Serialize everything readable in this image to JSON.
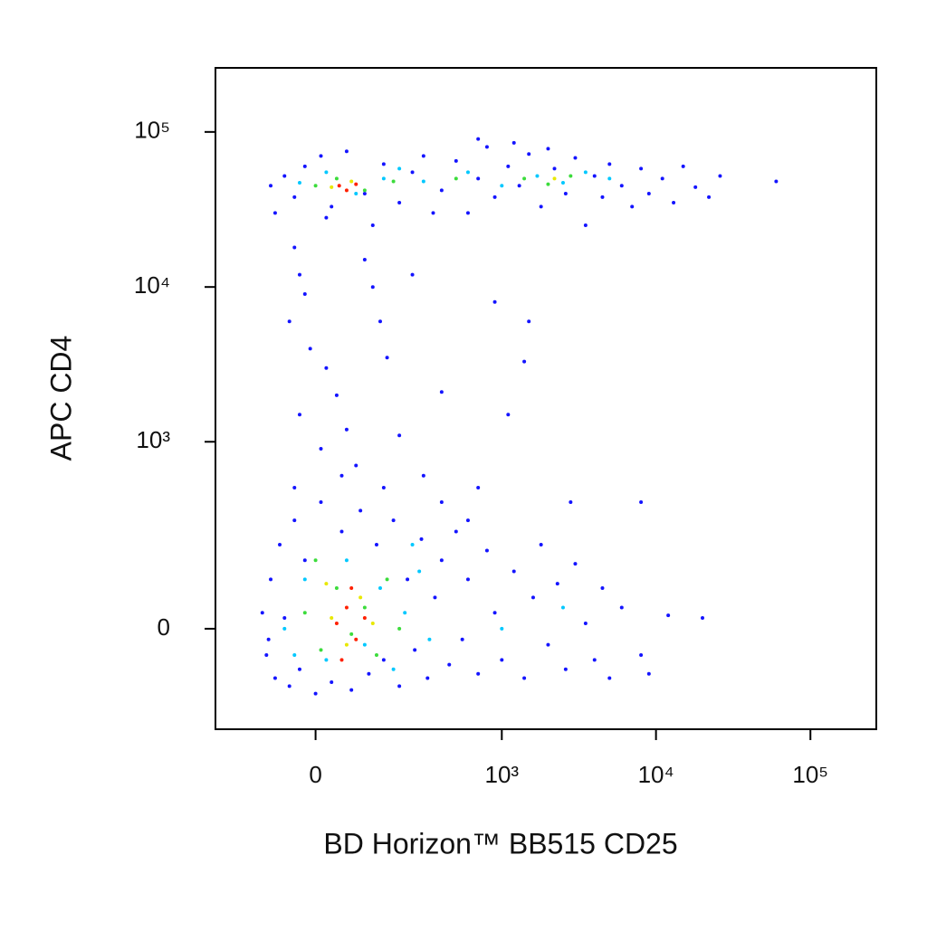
{
  "chart_data": {
    "type": "scatter",
    "xlabel": "BD Horizon™ BB515 CD25",
    "ylabel": "APC CD4",
    "xscale": "biexponential",
    "yscale": "biexponential",
    "xlim": [
      -264,
      267000
    ],
    "ylim": [
      -264,
      259000
    ],
    "xticks": [
      0,
      {
        "value": 1000,
        "label": "10³"
      },
      {
        "value": 10000,
        "label": "10⁴"
      },
      {
        "value": 100000,
        "label": "10⁵"
      }
    ],
    "yticks": [
      0,
      {
        "value": 1000,
        "label": "10³"
      },
      {
        "value": 10000,
        "label": "10⁴"
      },
      {
        "value": 100000,
        "label": "10⁵"
      }
    ],
    "series": [
      {
        "color": "#1414ff",
        "x": [
          -90,
          -60,
          -40,
          -20,
          10,
          30,
          60,
          100,
          150,
          200,
          250,
          300,
          400,
          500,
          600,
          700,
          800,
          900,
          1100,
          1300,
          1500,
          1800,
          2200,
          2600,
          3000,
          3500,
          4000,
          4500,
          5000,
          6000,
          7000,
          8000,
          9000,
          11000,
          13000,
          15000,
          18000,
          22000,
          26000,
          60000,
          -80,
          20,
          120,
          350,
          2000,
          1200,
          700,
          -40,
          -30,
          -20,
          -50,
          -10,
          20,
          40,
          -30,
          60,
          10,
          80,
          100,
          120,
          140,
          160,
          250,
          900,
          1500,
          1400,
          1100,
          400,
          200,
          2800,
          8000,
          600,
          -100,
          -90,
          -80,
          -70,
          -60,
          -50,
          -40,
          -30,
          -20,
          0,
          10,
          30,
          50,
          70,
          90,
          110,
          130,
          150,
          180,
          200,
          230,
          260,
          290,
          320,
          360,
          400,
          450,
          500,
          550,
          600,
          700,
          800,
          900,
          1000,
          1200,
          1400,
          1600,
          1800,
          2000,
          2300,
          2600,
          3000,
          3500,
          4000,
          4500,
          5000,
          6000,
          8000,
          9000,
          12000,
          20000,
          -110,
          -95,
          400,
          300,
          150,
          50,
          -40,
          700
        ],
        "values": [
          45000,
          52000,
          38000,
          60000,
          70000,
          33000,
          75000,
          40000,
          62000,
          35000,
          55000,
          70000,
          42000,
          65000,
          30000,
          50000,
          80000,
          38000,
          60000,
          45000,
          72000,
          33000,
          58000,
          40000,
          68000,
          25000,
          52000,
          38000,
          62000,
          45000,
          33000,
          58000,
          40000,
          50000,
          35000,
          60000,
          44000,
          38000,
          52000,
          48000,
          30000,
          28000,
          25000,
          30000,
          78000,
          85000,
          90000,
          18000,
          12000,
          9000,
          6000,
          4000,
          3000,
          2000,
          1500,
          1200,
          900,
          700,
          15000,
          10000,
          6000,
          3500,
          12000,
          8000,
          6000,
          3300,
          1500,
          2100,
          1100,
          400,
          400,
          300,
          -50,
          100,
          -100,
          200,
          20,
          -120,
          300,
          -80,
          150,
          -140,
          400,
          -110,
          250,
          -130,
          350,
          -90,
          200,
          -60,
          300,
          -120,
          100,
          -40,
          220,
          -100,
          60,
          150,
          -70,
          250,
          -20,
          100,
          -90,
          180,
          30,
          -60,
          120,
          -100,
          60,
          200,
          -30,
          90,
          -80,
          140,
          10,
          -60,
          80,
          -100,
          40,
          -50,
          -90,
          25,
          20,
          30,
          -20,
          400,
          600,
          500,
          600,
          500,
          500
        ]
      },
      {
        "color": "#00c8ff",
        "x": [
          -30,
          20,
          80,
          150,
          300,
          600,
          1000,
          1700,
          2500,
          3500,
          5000,
          200,
          -60,
          -20,
          20,
          60,
          100,
          140,
          180,
          220,
          280,
          330,
          -40,
          250,
          2500,
          1000
        ],
        "values": [
          47000,
          55000,
          40000,
          50000,
          48000,
          55000,
          45000,
          52000,
          47000,
          55000,
          50000,
          58000,
          0,
          100,
          -60,
          150,
          -30,
          80,
          -80,
          30,
          120,
          -20,
          -50,
          200,
          40,
          0
        ]
      },
      {
        "color": "#3cdc3c",
        "x": [
          0,
          40,
          100,
          180,
          1400,
          2000,
          2800,
          500,
          -20,
          10,
          40,
          70,
          100,
          130,
          160,
          200,
          0
        ],
        "values": [
          45000,
          50000,
          42000,
          48000,
          50000,
          46000,
          52000,
          50000,
          30,
          -40,
          80,
          -10,
          40,
          -50,
          100,
          0,
          150
        ]
      },
      {
        "color": "#e8e800",
        "x": [
          30,
          70,
          2200,
          30,
          60,
          90,
          120,
          20
        ],
        "values": [
          44000,
          48000,
          50000,
          20,
          -30,
          60,
          10,
          90
        ]
      },
      {
        "color": "#ff2000",
        "x": [
          45,
          80,
          60,
          40,
          60,
          80,
          100,
          50,
          70
        ],
        "values": [
          45000,
          46000,
          42000,
          10,
          40,
          -20,
          20,
          -60,
          80
        ]
      }
    ]
  }
}
